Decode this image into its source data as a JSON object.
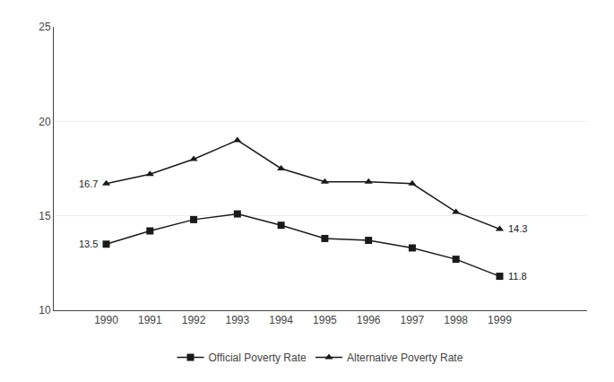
{
  "chart_data": {
    "type": "line",
    "x": [
      1990,
      1991,
      1992,
      1993,
      1994,
      1995,
      1996,
      1997,
      1998,
      1999
    ],
    "series": [
      {
        "name": "Official Poverty Rate",
        "color": "#1a1a1a",
        "marker": "square",
        "values": [
          13.5,
          14.2,
          14.8,
          15.1,
          14.5,
          13.8,
          13.7,
          13.3,
          12.7,
          11.8
        ]
      },
      {
        "name": "Alternative Poverty Rate",
        "color": "#1a1a1a",
        "marker": "triangle-up",
        "values": [
          16.7,
          17.2,
          18.0,
          19.0,
          17.5,
          16.8,
          16.8,
          16.7,
          15.2,
          14.3
        ]
      }
    ],
    "annotations": [
      {
        "x": 1990,
        "y": 13.5,
        "text": "13.5"
      },
      {
        "x": 1990,
        "y": 16.7,
        "text": "16.7"
      },
      {
        "x": 1999,
        "y": 11.8,
        "text": "11.8"
      },
      {
        "x": 1999,
        "y": 14.3,
        "text": "14.3"
      }
    ],
    "xlim": [
      1988.8,
      2001.0
    ],
    "xticks": [
      1990,
      1991,
      1992,
      1993,
      1994,
      1995,
      1996,
      1997,
      1998,
      1999
    ],
    "ylim": [
      10,
      25
    ],
    "yticks": [
      10,
      15,
      20,
      25
    ],
    "grid": "y",
    "legend": "bottom"
  }
}
